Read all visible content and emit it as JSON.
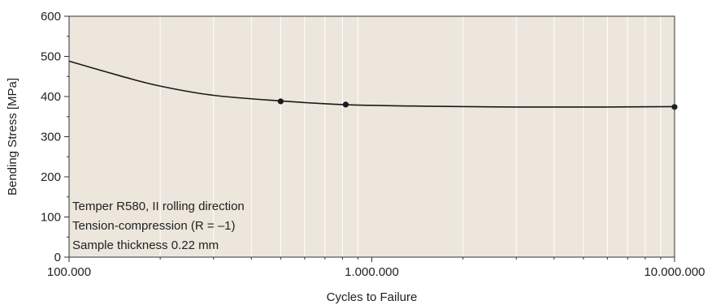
{
  "chart_data": {
    "type": "line",
    "xlabel": "Cycles to Failure",
    "ylabel": "Bending Stress [MPa]",
    "x_scale": "log",
    "xlim": [
      100000,
      10000000
    ],
    "ylim": [
      0,
      600
    ],
    "x_ticks": [
      {
        "value": 100000,
        "label": "100.000"
      },
      {
        "value": 1000000,
        "label": "1.000.000"
      },
      {
        "value": 10000000,
        "label": "10.000.000"
      }
    ],
    "y_ticks": [
      {
        "value": 0,
        "label": "0"
      },
      {
        "value": 100,
        "label": "100"
      },
      {
        "value": 200,
        "label": "200"
      },
      {
        "value": 300,
        "label": "300"
      },
      {
        "value": 400,
        "label": "400"
      },
      {
        "value": 500,
        "label": "500"
      },
      {
        "value": 600,
        "label": "600"
      }
    ],
    "grid": "vertical minor gridlines",
    "series": [
      {
        "curve": [
          {
            "x": 100000,
            "y": 488
          },
          {
            "x": 150000,
            "y": 450
          },
          {
            "x": 200000,
            "y": 426
          },
          {
            "x": 300000,
            "y": 403
          },
          {
            "x": 500000,
            "y": 389
          },
          {
            "x": 800000,
            "y": 380
          },
          {
            "x": 1500000,
            "y": 376
          },
          {
            "x": 3000000,
            "y": 374
          },
          {
            "x": 6000000,
            "y": 374
          },
          {
            "x": 10000000,
            "y": 375
          }
        ],
        "markers": [
          {
            "x": 500000,
            "y": 388
          },
          {
            "x": 820000,
            "y": 380
          },
          {
            "x": 10000000,
            "y": 374
          }
        ]
      }
    ],
    "annotations": [
      "Temper R580, II rolling direction",
      "Tension-compression (R = –1)",
      "Sample thickness 0.22 mm"
    ],
    "colors": {
      "plot_background": "#ece6dc",
      "gridline": "#ffffff",
      "line": "#1a1a1a",
      "axis": "#333333"
    }
  }
}
